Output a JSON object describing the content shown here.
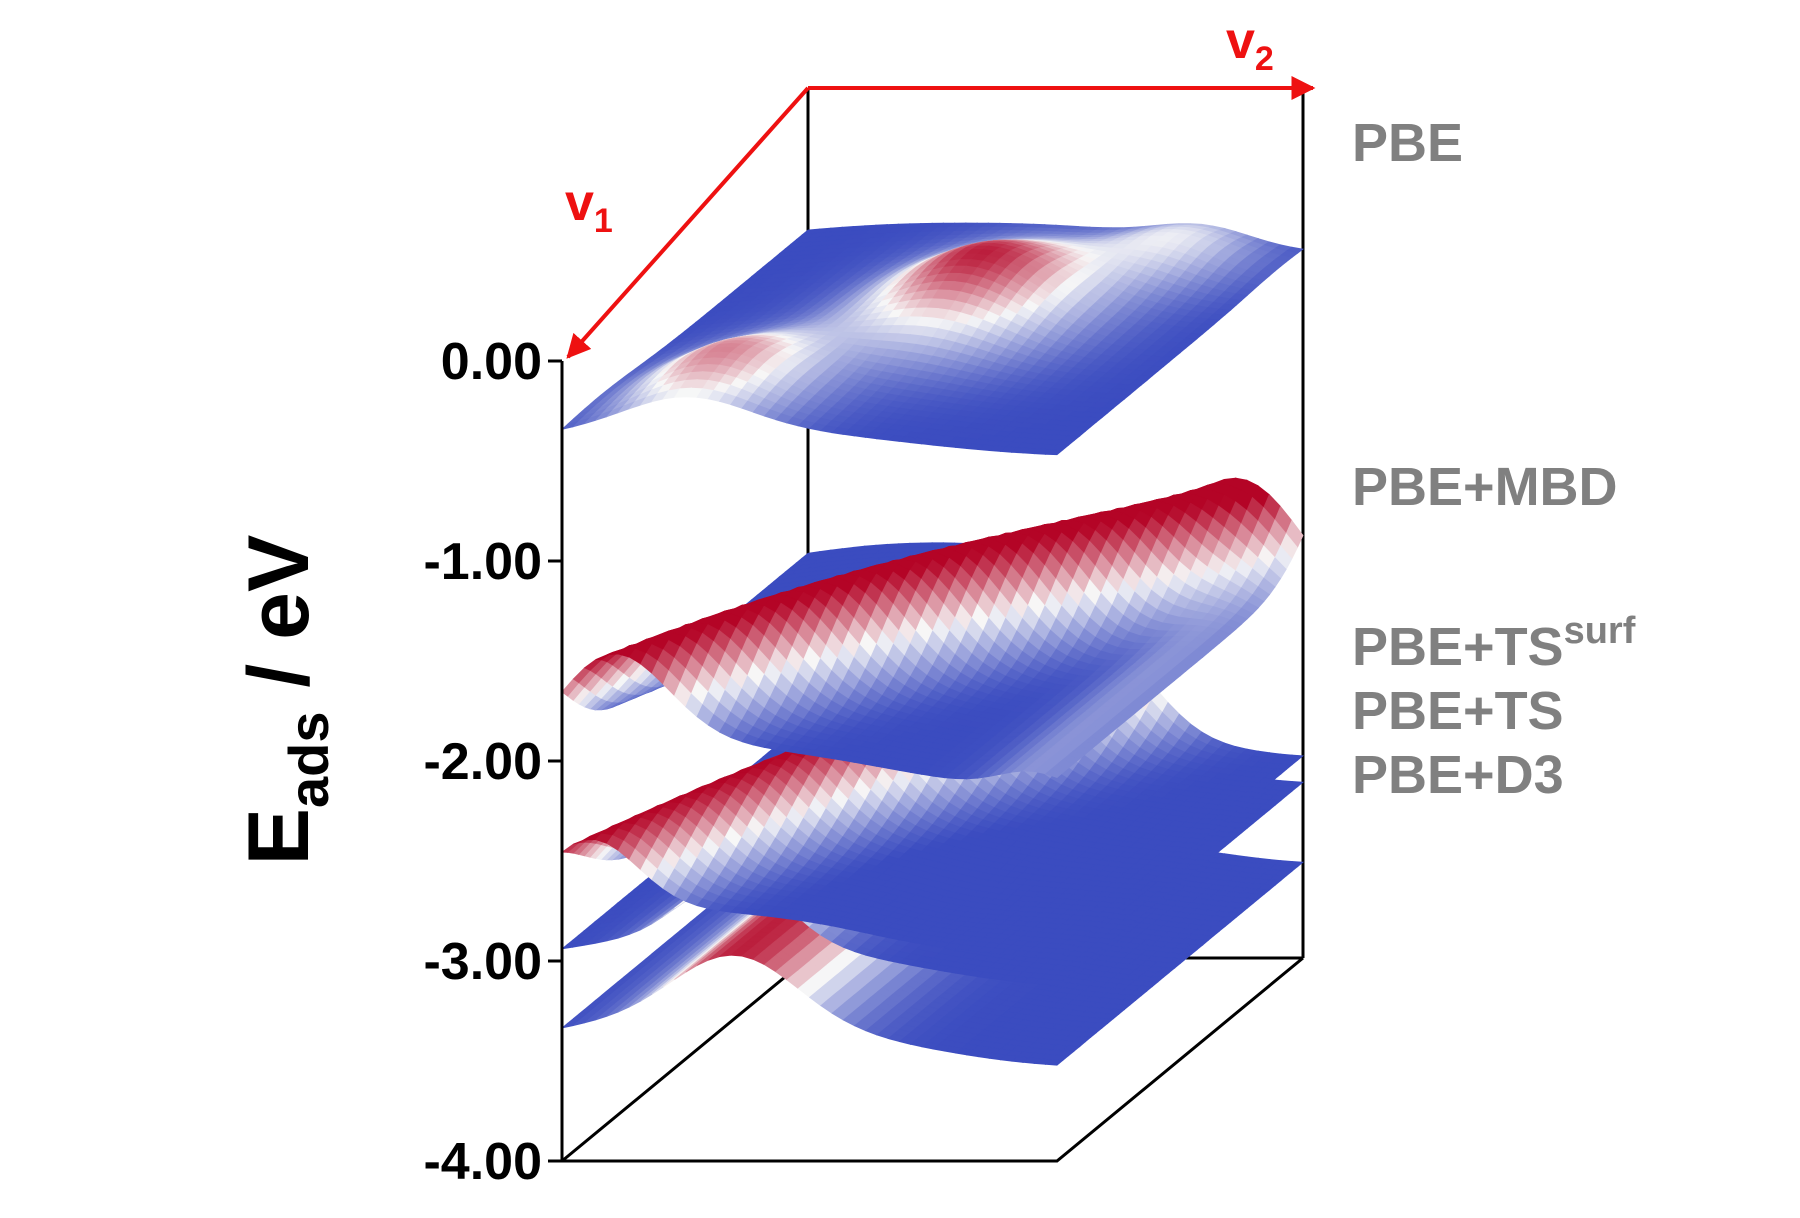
{
  "chart_data": {
    "type": "surface",
    "ylabel": {
      "main": "E",
      "sub": "ads",
      "rest": " / eV"
    },
    "zlim": [
      -4.0,
      0.0
    ],
    "zticks": [
      "0.00",
      "-1.00",
      "-2.00",
      "-3.00",
      "-4.00"
    ],
    "axes": [
      {
        "name": "v",
        "sub": "1"
      },
      {
        "name": "v",
        "sub": "2"
      }
    ],
    "colormap": [
      "#3b4cc0",
      "#f7f7f7",
      "#b40426"
    ],
    "series": [
      {
        "name": "PBE",
        "sup": "",
        "level": -0.3
      },
      {
        "name": "PBE+MBD",
        "sup": "",
        "level": -1.9
      },
      {
        "name": "PBE+TS",
        "sup": "surf",
        "level": -2.75
      },
      {
        "name": "PBE+TS",
        "sup": "",
        "level": -2.9
      },
      {
        "name": "PBE+D3",
        "sup": "",
        "level": -3.3
      }
    ],
    "colors": {
      "arrow": "#ee1111",
      "frame": "#000000",
      "legend_text": "#808080",
      "tick_text": "#000000"
    }
  }
}
